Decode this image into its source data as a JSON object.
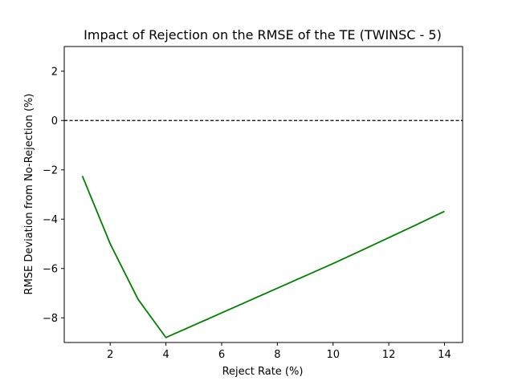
{
  "chart_data": {
    "type": "line",
    "title": "Impact of Rejection on the RMSE of the TE (TWINSC - 5)",
    "xlabel": "Reject Rate (%)",
    "ylabel": "RMSE Deviation from No-Rejection (%)",
    "xlim": [
      0.35,
      14.65
    ],
    "ylim": [
      -9.0,
      3.0
    ],
    "xticks": [
      2,
      4,
      6,
      8,
      10,
      12,
      14
    ],
    "yticks": [
      -8,
      -6,
      -4,
      -2,
      0,
      2
    ],
    "grid": false,
    "reference_line": {
      "y": 0,
      "style": "dashed",
      "color": "#000000"
    },
    "series": [
      {
        "color": "#008000",
        "x": [
          1,
          2,
          3,
          4,
          5,
          6,
          7,
          8,
          9,
          10,
          11,
          12,
          13,
          14
        ],
        "values": [
          -2.25,
          -5.0,
          -7.25,
          -8.8,
          -8.3,
          -7.8,
          -7.3,
          -6.8,
          -6.3,
          -5.8,
          -5.28,
          -4.75,
          -4.22,
          -3.68
        ]
      }
    ]
  }
}
